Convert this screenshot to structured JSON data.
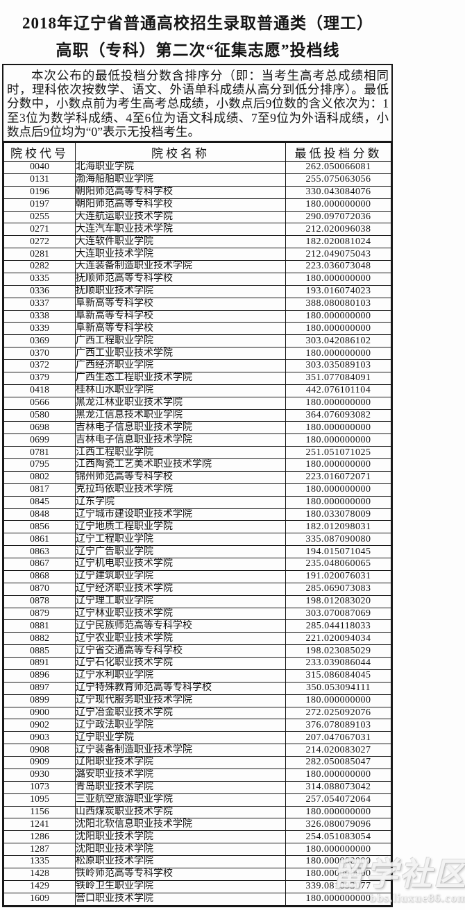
{
  "header": {
    "title_line1": "2018年辽宁省普通高校招生录取普通类（理工）",
    "title_line2": "高职（专科）第二次“征集志愿”投档线"
  },
  "notice": {
    "text": "本次公布的最低投档分数含排序分（即：当考生高考总成绩相同时，理科依次按数学、语文、外语单科成绩从高分到低分排序）。最低分数中，小数点前为考生高考总成绩，小数点后9位数的含义依次为：1至3位为数学科成绩、4至6位为语文科成绩、7至9位为外语科成绩，小数点后9位均为“0”表示无投档考生。"
  },
  "table": {
    "columns": [
      "院校代号",
      "院校名称",
      "最低投档分数"
    ],
    "rows": [
      {
        "code": "0040",
        "name": "北海职业学院",
        "score": "262.050066081"
      },
      {
        "code": "0131",
        "name": "渤海船舶职业学院",
        "score": "255.075063056"
      },
      {
        "code": "0196",
        "name": "朝阳师范高等专科学校",
        "score": "330.043084076"
      },
      {
        "code": "0197",
        "name": "朝阳师范高等专科学校",
        "score": "180.000000000"
      },
      {
        "code": "0255",
        "name": "大连航运职业技术学院",
        "score": "290.097072036"
      },
      {
        "code": "0271",
        "name": "大连汽车职业技术学院",
        "score": "212.020096038"
      },
      {
        "code": "0272",
        "name": "大连软件职业学院",
        "score": "182.020081024"
      },
      {
        "code": "0281",
        "name": "大连职业技术学院",
        "score": "212.049075043"
      },
      {
        "code": "0282",
        "name": "大连装备制造职业技术学院",
        "score": "223.036073048"
      },
      {
        "code": "0335",
        "name": "抚顺师范高等专科学校",
        "score": "180.000000000"
      },
      {
        "code": "0336",
        "name": "抚顺职业技术学院",
        "score": "193.016074023"
      },
      {
        "code": "0337",
        "name": "阜新高等专科学校",
        "score": "388.080080103"
      },
      {
        "code": "0338",
        "name": "阜新高等专科学校",
        "score": "180.000000000"
      },
      {
        "code": "0339",
        "name": "阜新高等专科学校",
        "score": "180.000000000"
      },
      {
        "code": "0369",
        "name": "广西工程职业学院",
        "score": "303.042086102"
      },
      {
        "code": "0370",
        "name": "广西工业职业技术学院",
        "score": "180.000000000"
      },
      {
        "code": "0372",
        "name": "广西经济职业学院",
        "score": "303.035089103"
      },
      {
        "code": "0379",
        "name": "广西生态工程职业技术学院",
        "score": "351.077084091"
      },
      {
        "code": "0418",
        "name": "桂林山水职业学院",
        "score": "442.076101104"
      },
      {
        "code": "0566",
        "name": "黑龙江林业职业技术学院",
        "score": "180.000000000"
      },
      {
        "code": "0580",
        "name": "黑龙江信息技术职业学院",
        "score": "364.076093082"
      },
      {
        "code": "0698",
        "name": "吉林电子信息职业技术学院",
        "score": "180.000000000"
      },
      {
        "code": "0699",
        "name": "吉林电子信息职业技术学院",
        "score": "180.000000000"
      },
      {
        "code": "0781",
        "name": "江西工程职业学院",
        "score": "251.051071025"
      },
      {
        "code": "0795",
        "name": "江西陶瓷工艺美术职业技术学院",
        "score": "180.000000000"
      },
      {
        "code": "0802",
        "name": "锦州师范高等专科学校",
        "score": "223.016072071"
      },
      {
        "code": "0817",
        "name": "克拉玛依职业技术学院",
        "score": "180.000000000"
      },
      {
        "code": "0845",
        "name": "辽东学院",
        "score": "180.000000000"
      },
      {
        "code": "0848",
        "name": "辽宁城市建设职业技术学院",
        "score": "180.033078009"
      },
      {
        "code": "0856",
        "name": "辽宁地质工程职业学院",
        "score": "182.012098031"
      },
      {
        "code": "0861",
        "name": "辽宁工程职业学院",
        "score": "335.087090080"
      },
      {
        "code": "0863",
        "name": "辽宁广告职业学院",
        "score": "194.015071045"
      },
      {
        "code": "0867",
        "name": "辽宁机电职业技术学院",
        "score": "235.048060065"
      },
      {
        "code": "0868",
        "name": "辽宁建筑职业学院",
        "score": "191.020076031"
      },
      {
        "code": "0870",
        "name": "辽宁经济职业技术学院",
        "score": "285.069073083"
      },
      {
        "code": "0878",
        "name": "辽宁理工职业学院",
        "score": "198.012083020"
      },
      {
        "code": "0879",
        "name": "辽宁林业职业技术学院",
        "score": "303.070087069"
      },
      {
        "code": "0881",
        "name": "辽宁民族师范高等专科学校",
        "score": "285.044118033"
      },
      {
        "code": "0882",
        "name": "辽宁农业职业技术学院",
        "score": "221.020094034"
      },
      {
        "code": "0885",
        "name": "辽宁省交通高等专科学校",
        "score": "198.023085029"
      },
      {
        "code": "0891",
        "name": "辽宁石化职业技术学院",
        "score": "233.039086044"
      },
      {
        "code": "0896",
        "name": "辽宁水利职业学院",
        "score": "315.086084045"
      },
      {
        "code": "0897",
        "name": "辽宁特殊教育师范高等专科学校",
        "score": "350.053094111"
      },
      {
        "code": "0899",
        "name": "辽宁现代服务职业技术学院",
        "score": "180.000000000"
      },
      {
        "code": "0900",
        "name": "辽宁冶金职业技术学院",
        "score": "272.025092076"
      },
      {
        "code": "0902",
        "name": "辽宁政法职业学院",
        "score": "376.078089103"
      },
      {
        "code": "0903",
        "name": "辽宁职业学院",
        "score": "207.047067031"
      },
      {
        "code": "0908",
        "name": "辽宁装备制造职业技术学院",
        "score": "214.020083027"
      },
      {
        "code": "0909",
        "name": "辽阳职业技术学院",
        "score": "282.050085047"
      },
      {
        "code": "0930",
        "name": "潞安职业技术学院",
        "score": "180.000000000"
      },
      {
        "code": "1073",
        "name": "青岛职业技术学院",
        "score": "314.088073042"
      },
      {
        "code": "1095",
        "name": "三亚航空旅游职业学院",
        "score": "257.054072064"
      },
      {
        "code": "1156",
        "name": "山西煤炭职业技术学院",
        "score": "180.000000000"
      },
      {
        "code": "1241",
        "name": "沈阳北软信息职业技术学院",
        "score": "326.080079096"
      },
      {
        "code": "1286",
        "name": "沈阳职业技术学院",
        "score": "254.051083054"
      },
      {
        "code": "1287",
        "name": "沈阳职业技术学院",
        "score": "180.000000000"
      },
      {
        "code": "1335",
        "name": "松原职业技术学院",
        "score": "180.000000000"
      },
      {
        "code": "1428",
        "name": "铁岭师范高等专科学校",
        "score": "180.000000000"
      },
      {
        "code": "1429",
        "name": "铁岭卫生职业学院",
        "score": "339.081093077"
      },
      {
        "code": "1609",
        "name": "营口职业技术学院",
        "score": "180.000000000"
      }
    ]
  },
  "watermark": {
    "logo": "留学社区",
    "url": "bbs.liuxue86.com"
  }
}
